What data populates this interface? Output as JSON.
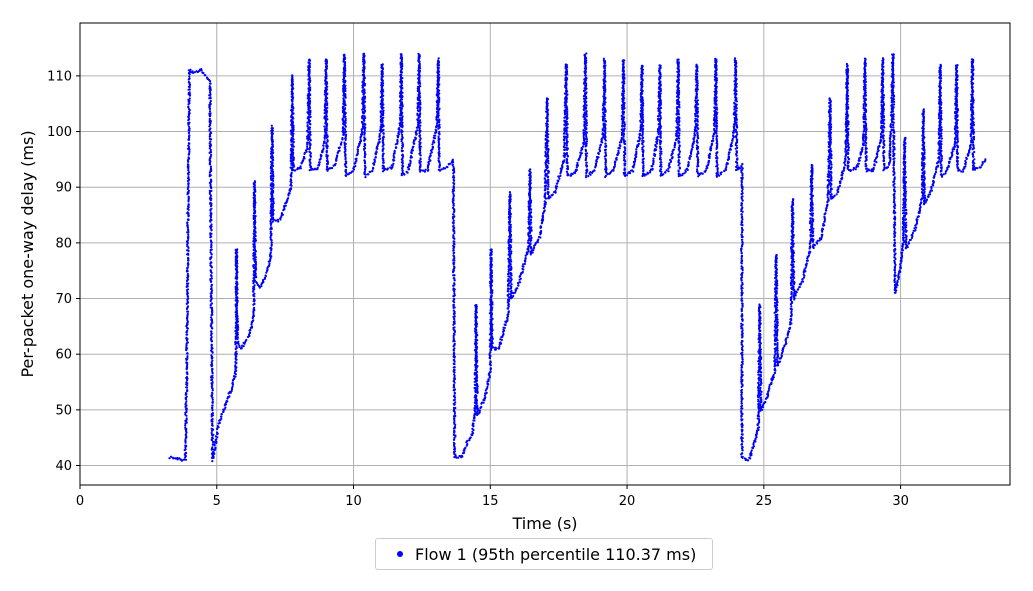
{
  "chart_data": {
    "type": "scatter",
    "title": "",
    "xlabel": "Time (s)",
    "ylabel": "Per-packet one-way delay (ms)",
    "xlim": [
      0,
      34
    ],
    "ylim": [
      36.5,
      119.5
    ],
    "xticks": [
      0,
      5,
      10,
      15,
      20,
      25,
      30
    ],
    "yticks": [
      40,
      50,
      60,
      70,
      80,
      90,
      100,
      110
    ],
    "grid": true,
    "legend_position": "bottom-center",
    "colors": {
      "series": "#0000ff",
      "grid": "#b0b0b0"
    },
    "series": [
      {
        "name": "Flow 1 (95th percentile 110.37 ms)",
        "trace": [
          [
            3.3,
            41.5
          ],
          [
            3.5,
            41.3
          ],
          [
            3.7,
            41.0
          ],
          [
            3.85,
            41.2
          ],
          [
            3.9,
            55.0
          ],
          [
            3.95,
            85.0
          ],
          [
            4.0,
            111.0
          ],
          [
            4.2,
            110.5
          ],
          [
            4.4,
            111.2
          ],
          [
            4.6,
            110.0
          ],
          [
            4.75,
            109.0
          ],
          [
            4.8,
            72.0
          ],
          [
            4.85,
            41.0
          ],
          [
            4.95,
            44.0
          ],
          [
            5.05,
            47.0
          ],
          [
            5.3,
            50.5
          ],
          [
            5.55,
            54.0
          ],
          [
            5.7,
            57.0
          ],
          [
            5.72,
            79.0
          ],
          [
            5.76,
            62.0
          ],
          [
            5.9,
            61.0
          ],
          [
            6.2,
            63.5
          ],
          [
            6.35,
            67.0
          ],
          [
            6.38,
            91.0
          ],
          [
            6.42,
            73.0
          ],
          [
            6.6,
            72.0
          ],
          [
            6.85,
            75.0
          ],
          [
            6.98,
            78.0
          ],
          [
            7.02,
            101.0
          ],
          [
            7.06,
            84.0
          ],
          [
            7.3,
            84.0
          ],
          [
            7.6,
            88.0
          ],
          [
            7.72,
            90.0
          ],
          [
            7.76,
            110.0
          ],
          [
            7.8,
            93.0
          ],
          [
            8.05,
            93.5
          ],
          [
            8.32,
            97.0
          ],
          [
            8.38,
            113.0
          ],
          [
            8.42,
            93.0
          ],
          [
            8.7,
            93.5
          ],
          [
            8.95,
            98.0
          ],
          [
            9.0,
            113.0
          ],
          [
            9.04,
            93.0
          ],
          [
            9.3,
            94.0
          ],
          [
            9.62,
            99.0
          ],
          [
            9.67,
            114.0
          ],
          [
            9.71,
            92.0
          ],
          [
            10.0,
            93.0
          ],
          [
            10.32,
            100.0
          ],
          [
            10.38,
            114.0
          ],
          [
            10.42,
            92.0
          ],
          [
            10.7,
            93.0
          ],
          [
            11.0,
            100.0
          ],
          [
            11.05,
            112.0
          ],
          [
            11.09,
            93.0
          ],
          [
            11.4,
            93.5
          ],
          [
            11.7,
            101.0
          ],
          [
            11.75,
            114.0
          ],
          [
            11.79,
            92.0
          ],
          [
            12.0,
            93.0
          ],
          [
            12.35,
            101.0
          ],
          [
            12.4,
            114.0
          ],
          [
            12.44,
            93.0
          ],
          [
            12.7,
            93.0
          ],
          [
            13.05,
            101.0
          ],
          [
            13.1,
            113.0
          ],
          [
            13.14,
            93.0
          ],
          [
            13.4,
            93.5
          ],
          [
            13.65,
            95.0
          ],
          [
            13.7,
            41.5
          ],
          [
            13.95,
            41.5
          ],
          [
            14.15,
            44.0
          ],
          [
            14.35,
            46.0
          ],
          [
            14.45,
            50.0
          ],
          [
            14.48,
            69.0
          ],
          [
            14.52,
            49.0
          ],
          [
            14.8,
            52.0
          ],
          [
            15.0,
            57.0
          ],
          [
            15.03,
            79.0
          ],
          [
            15.07,
            61.0
          ],
          [
            15.3,
            61.0
          ],
          [
            15.65,
            67.0
          ],
          [
            15.72,
            89.0
          ],
          [
            15.76,
            70.0
          ],
          [
            16.0,
            72.0
          ],
          [
            16.4,
            79.0
          ],
          [
            16.45,
            93.0
          ],
          [
            16.49,
            78.0
          ],
          [
            16.8,
            81.0
          ],
          [
            17.0,
            87.0
          ],
          [
            17.08,
            106.0
          ],
          [
            17.12,
            88.0
          ],
          [
            17.35,
            89.0
          ],
          [
            17.7,
            95.0
          ],
          [
            17.78,
            112.0
          ],
          [
            17.82,
            92.0
          ],
          [
            18.1,
            92.5
          ],
          [
            18.42,
            98.0
          ],
          [
            18.48,
            114.0
          ],
          [
            18.52,
            92.0
          ],
          [
            18.8,
            93.0
          ],
          [
            19.12,
            99.0
          ],
          [
            19.18,
            113.0
          ],
          [
            19.22,
            92.0
          ],
          [
            19.5,
            93.0
          ],
          [
            19.82,
            99.0
          ],
          [
            19.87,
            113.0
          ],
          [
            19.91,
            92.0
          ],
          [
            20.2,
            93.0
          ],
          [
            20.5,
            100.0
          ],
          [
            20.55,
            112.0
          ],
          [
            20.59,
            92.0
          ],
          [
            20.9,
            93.0
          ],
          [
            21.15,
            100.0
          ],
          [
            21.2,
            112.0
          ],
          [
            21.24,
            92.0
          ],
          [
            21.5,
            93.0
          ],
          [
            21.82,
            99.0
          ],
          [
            21.87,
            113.0
          ],
          [
            21.91,
            92.0
          ],
          [
            22.2,
            93.0
          ],
          [
            22.5,
            100.0
          ],
          [
            22.55,
            112.0
          ],
          [
            22.59,
            92.0
          ],
          [
            22.9,
            93.0
          ],
          [
            23.2,
            100.0
          ],
          [
            23.25,
            113.0
          ],
          [
            23.29,
            92.0
          ],
          [
            23.6,
            93.0
          ],
          [
            23.92,
            100.0
          ],
          [
            23.97,
            113.0
          ],
          [
            24.01,
            93.0
          ],
          [
            24.2,
            94.0
          ],
          [
            24.2,
            41.5
          ],
          [
            24.45,
            41.0
          ],
          [
            24.65,
            44.0
          ],
          [
            24.8,
            47.0
          ],
          [
            24.85,
            69.0
          ],
          [
            24.9,
            50.0
          ],
          [
            25.1,
            52.0
          ],
          [
            25.4,
            57.0
          ],
          [
            25.45,
            78.0
          ],
          [
            25.5,
            58.0
          ],
          [
            25.8,
            62.0
          ],
          [
            26.0,
            66.0
          ],
          [
            26.05,
            88.0
          ],
          [
            26.1,
            70.0
          ],
          [
            26.4,
            73.0
          ],
          [
            26.7,
            79.0
          ],
          [
            26.75,
            94.0
          ],
          [
            26.8,
            79.0
          ],
          [
            27.1,
            81.0
          ],
          [
            27.35,
            88.0
          ],
          [
            27.42,
            106.0
          ],
          [
            27.46,
            88.0
          ],
          [
            27.7,
            89.0
          ],
          [
            28.0,
            95.0
          ],
          [
            28.05,
            112.0
          ],
          [
            28.09,
            93.0
          ],
          [
            28.4,
            93.5
          ],
          [
            28.65,
            98.0
          ],
          [
            28.7,
            113.0
          ],
          [
            28.74,
            93.0
          ],
          [
            29.0,
            93.0
          ],
          [
            29.3,
            99.0
          ],
          [
            29.35,
            113.0
          ],
          [
            29.39,
            93.0
          ],
          [
            29.6,
            94.0
          ],
          [
            29.68,
            104.0
          ],
          [
            29.72,
            114.0
          ],
          [
            29.76,
            93.0
          ],
          [
            29.8,
            71.0
          ],
          [
            29.98,
            75.0
          ],
          [
            30.1,
            80.0
          ],
          [
            30.15,
            99.0
          ],
          [
            30.2,
            79.0
          ],
          [
            30.5,
            82.0
          ],
          [
            30.8,
            88.0
          ],
          [
            30.83,
            104.0
          ],
          [
            30.87,
            87.0
          ],
          [
            31.1,
            89.0
          ],
          [
            31.4,
            95.0
          ],
          [
            31.45,
            112.0
          ],
          [
            31.49,
            92.0
          ],
          [
            31.7,
            93.0
          ],
          [
            32.0,
            98.0
          ],
          [
            32.05,
            112.0
          ],
          [
            32.09,
            93.0
          ],
          [
            32.3,
            93.0
          ],
          [
            32.58,
            98.0
          ],
          [
            32.63,
            113.0
          ],
          [
            32.67,
            93.0
          ],
          [
            32.9,
            93.5
          ],
          [
            33.1,
            95.0
          ]
        ]
      }
    ]
  }
}
